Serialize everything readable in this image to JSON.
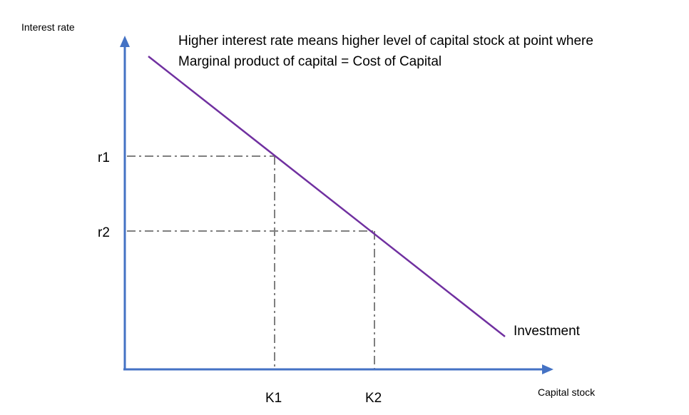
{
  "diagram": {
    "y_axis_label": "Interest rate",
    "x_axis_label": "Capital stock",
    "annotation_line1": "Higher interest rate means higher level of capital stock at point where",
    "annotation_line2": "Marginal product of capital = Cost of Capital",
    "curve_label": "Investment",
    "rates": [
      {
        "label": "r1"
      },
      {
        "label": "r2"
      }
    ],
    "capital": [
      {
        "label": "K1"
      },
      {
        "label": "K2"
      }
    ],
    "colors": {
      "axes": "#4472C4",
      "curve": "#7030A0",
      "guides": "#7F7F7F"
    }
  }
}
